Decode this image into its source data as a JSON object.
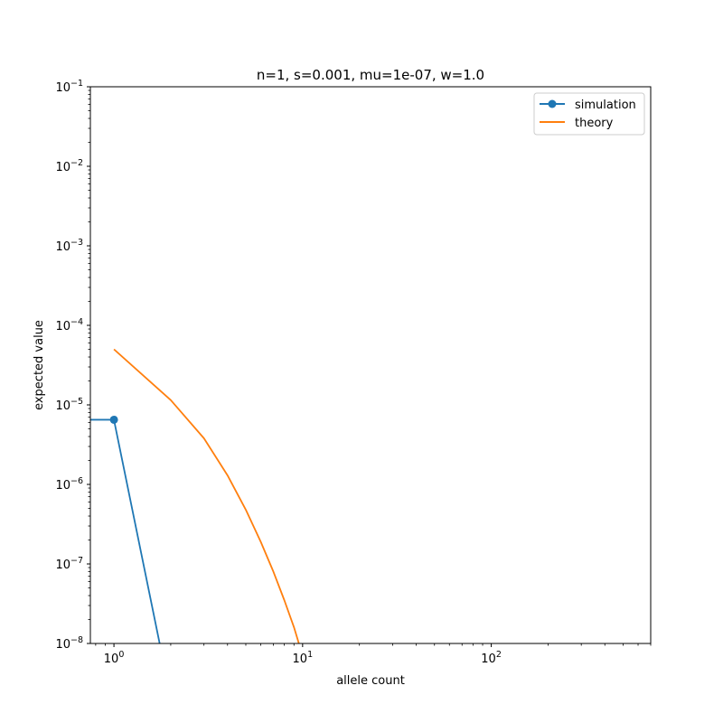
{
  "chart_data": {
    "type": "line",
    "title": "n=1, s=0.001, mu=1e-07, w=1.0",
    "xlabel": "allele count",
    "ylabel": "expected value",
    "xscale": "log",
    "yscale": "log",
    "xlim": [
      0.75,
      700
    ],
    "ylim": [
      1e-08,
      0.1
    ],
    "grid": false,
    "legend_position": "top-right",
    "x_ticks": [
      {
        "base": "10",
        "exp": "0"
      },
      {
        "base": "10",
        "exp": "1"
      },
      {
        "base": "10",
        "exp": "2"
      }
    ],
    "y_ticks": [
      {
        "base": "10",
        "exp": "−8"
      },
      {
        "base": "10",
        "exp": "−7"
      },
      {
        "base": "10",
        "exp": "−6"
      },
      {
        "base": "10",
        "exp": "−5"
      },
      {
        "base": "10",
        "exp": "−4"
      },
      {
        "base": "10",
        "exp": "−3"
      },
      {
        "base": "10",
        "exp": "−2"
      },
      {
        "base": "10",
        "exp": "−1"
      }
    ],
    "series": [
      {
        "name": "simulation",
        "color": "#1f77b4",
        "marker": "circle",
        "points": [
          [
            0,
            6.5e-06
          ],
          [
            1,
            6.5e-06
          ],
          [
            2,
            0
          ]
        ]
      },
      {
        "name": "theory",
        "color": "#ff7f0e",
        "marker": "none",
        "points": [
          [
            1,
            5e-05
          ],
          [
            2,
            1.15e-05
          ],
          [
            3,
            3.8e-06
          ],
          [
            4,
            1.3e-06
          ],
          [
            5,
            4.8e-07
          ],
          [
            6,
            1.9e-07
          ],
          [
            7,
            8e-08
          ],
          [
            8,
            3.5e-08
          ],
          [
            9,
            1.6e-08
          ],
          [
            10,
            7e-09
          ]
        ]
      }
    ]
  }
}
